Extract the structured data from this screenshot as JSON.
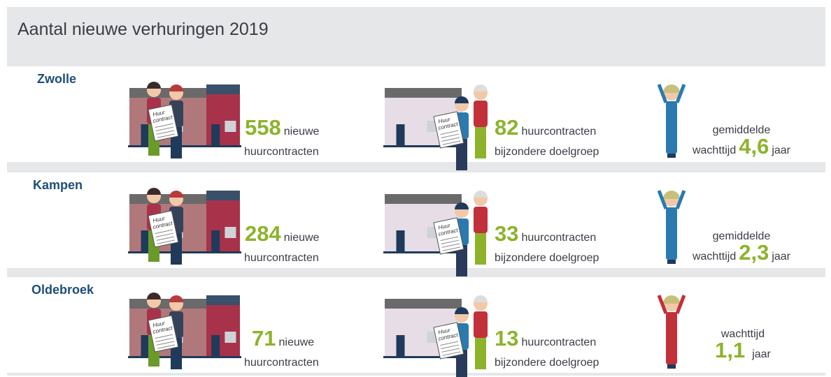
{
  "title": "Aantal nieuwe verhuringen 2019",
  "paper_label": [
    "Huur",
    "contract"
  ],
  "rows": [
    {
      "city": "Zwolle",
      "new_contracts": {
        "number": 558,
        "word": "nieuwe",
        "line2": "huurcontracten"
      },
      "target_group": {
        "number": 82,
        "word": "huurcontracten",
        "line2": "bijzondere doelgroep"
      },
      "waiting": {
        "line1": "gemiddelde",
        "prefix": "wachttijd",
        "number": "4,6",
        "unit": "jaar"
      }
    },
    {
      "city": "Kampen",
      "new_contracts": {
        "number": 284,
        "word": "nieuwe",
        "line2": "huurcontracten"
      },
      "target_group": {
        "number": 33,
        "word": "huurcontracten",
        "line2": "bijzondere doelgroep"
      },
      "waiting": {
        "line1": "gemiddelde",
        "prefix": "wachttijd",
        "number": "2,3",
        "unit": "jaar"
      }
    },
    {
      "city": "Oldebroek",
      "new_contracts": {
        "number": 71,
        "word": "nieuwe",
        "line2": "huurcontracten"
      },
      "target_group": {
        "number": 13,
        "word": "huurcontracten",
        "line2": "bijzondere doelgroep"
      },
      "waiting": {
        "prefix": "wachttijd",
        "number": "1,1",
        "unit": "jaar"
      }
    }
  ]
}
